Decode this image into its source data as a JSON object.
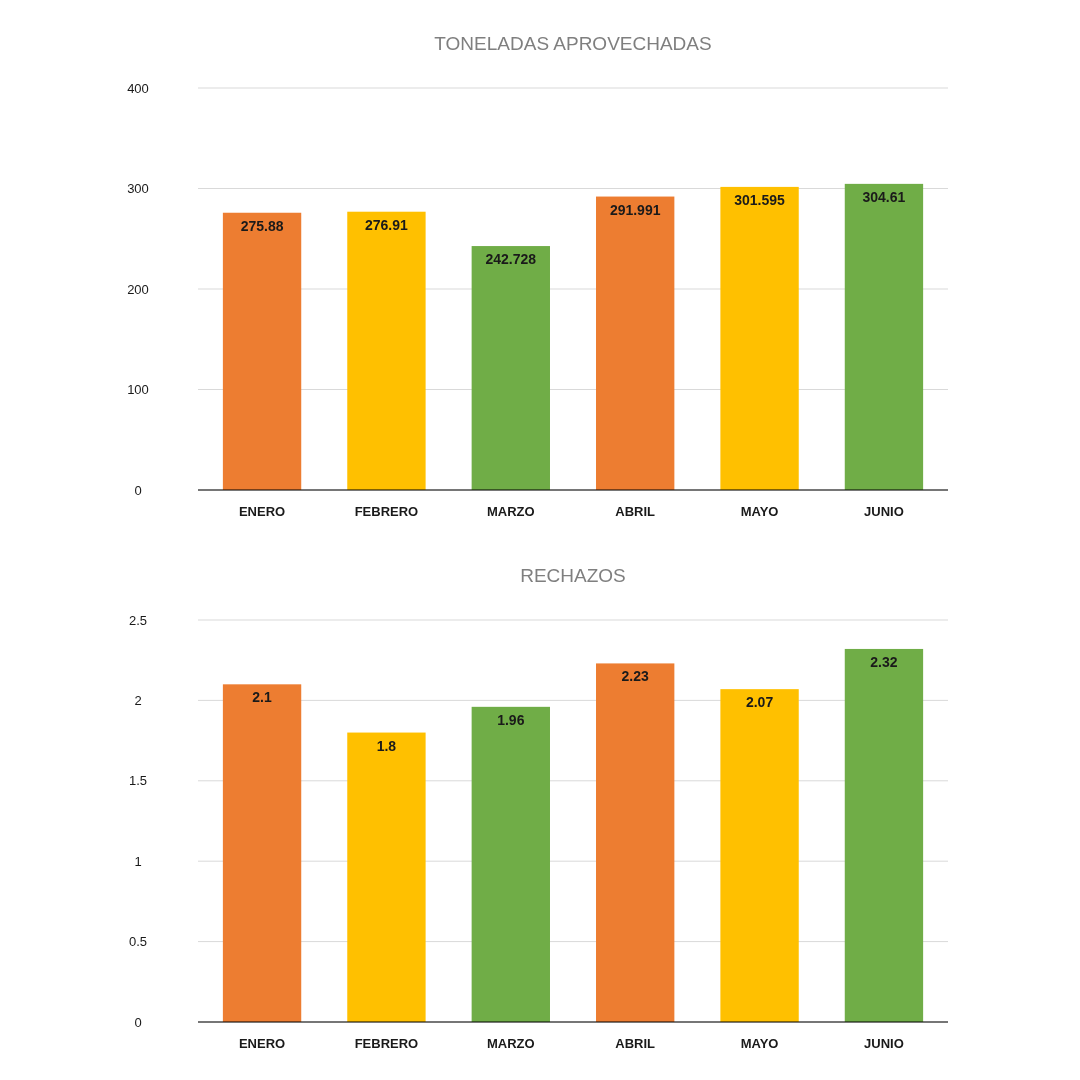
{
  "chart_data": [
    {
      "type": "bar",
      "title": "TONELADAS APROVECHADAS",
      "categories": [
        "ENERO",
        "FEBRERO",
        "MARZO",
        "ABRIL",
        "MAYO",
        "JUNIO"
      ],
      "values": [
        275.88,
        276.91,
        242.728,
        291.991,
        301.595,
        304.61
      ],
      "colors": [
        "#ed7d31",
        "#ffc000",
        "#70ad47",
        "#ed7d31",
        "#ffc000",
        "#70ad47"
      ],
      "ylim": [
        0,
        400
      ],
      "yticks": [
        0,
        100,
        200,
        300,
        400
      ],
      "grid": "y",
      "data_labels": true
    },
    {
      "type": "bar",
      "title": "RECHAZOS",
      "categories": [
        "ENERO",
        "FEBRERO",
        "MARZO",
        "ABRIL",
        "MAYO",
        "JUNIO"
      ],
      "values": [
        2.1,
        1.8,
        1.96,
        2.23,
        2.07,
        2.32
      ],
      "colors": [
        "#ed7d31",
        "#ffc000",
        "#70ad47",
        "#ed7d31",
        "#ffc000",
        "#70ad47"
      ],
      "ylim": [
        0,
        2.5
      ],
      "yticks": [
        0,
        0.5,
        1,
        1.5,
        2,
        2.5
      ],
      "grid": "y",
      "data_labels": true
    }
  ]
}
